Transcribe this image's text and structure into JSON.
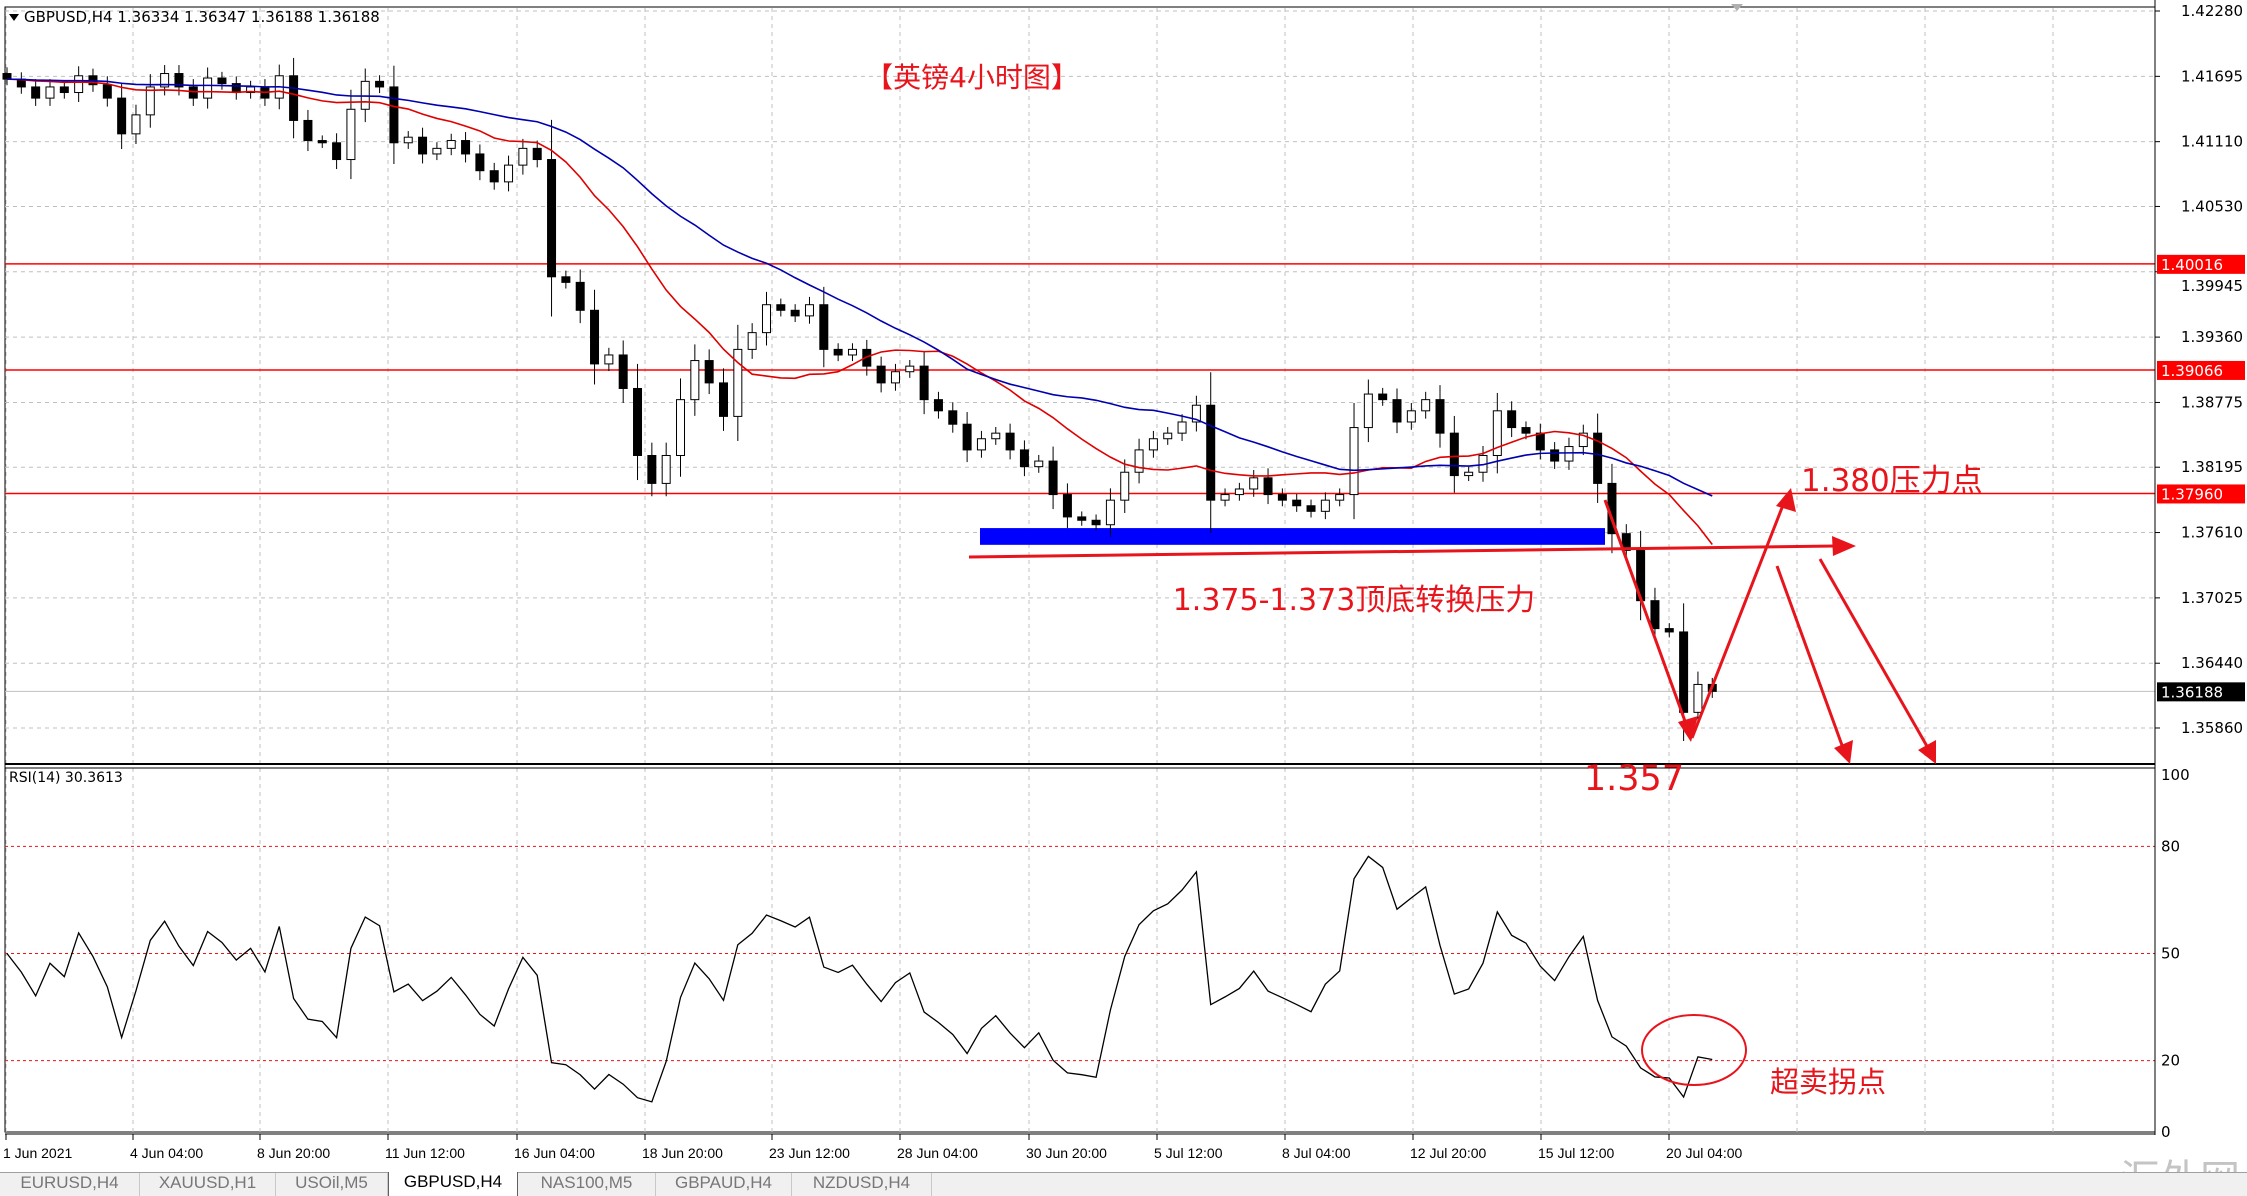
{
  "header": {
    "symbol_info": "GBPUSD,H4  1.36334 1.36347 1.36188 1.36188"
  },
  "chart_title": "【英镑4小时图】",
  "price_axis": {
    "ticks": [
      "1.42280",
      "1.41695",
      "1.41110",
      "1.40530",
      "1.39945",
      "1.39360",
      "1.38775",
      "1.38195",
      "1.37610",
      "1.37025",
      "1.36440",
      "1.35860"
    ],
    "levels": [
      {
        "label": "1.40016",
        "color": "#ff0000"
      },
      {
        "label": "1.39066",
        "color": "#ff0000"
      },
      {
        "label": "1.37960",
        "color": "#ff0000"
      }
    ],
    "current": {
      "label": "1.36188",
      "color": "#000000"
    }
  },
  "time_axis": [
    "1 Jun 2021",
    "4 Jun 04:00",
    "8 Jun 20:00",
    "11 Jun 12:00",
    "16 Jun 04:00",
    "18 Jun 20:00",
    "23 Jun 12:00",
    "28 Jun 04:00",
    "30 Jun 20:00",
    "5 Jul 12:00",
    "8 Jul 04:00",
    "12 Jul 20:00",
    "15 Jul 12:00",
    "20 Jul 04:00"
  ],
  "rsi": {
    "label": "RSI(14) 30.3613",
    "ticks": [
      "100",
      "80",
      "50",
      "20",
      "0"
    ],
    "levels": [
      80,
      50,
      20
    ]
  },
  "annotations": {
    "zone_text": "1.375-1.373顶底转换压力",
    "resistance_text": "1.380压力点",
    "low_text": "1.357",
    "oversold_text": "超卖拐点",
    "color": "#e8141c"
  },
  "zone": {
    "from": 1.375,
    "to": 1.3765,
    "color": "#0000ff"
  },
  "watermark": "汇外网",
  "tabs": [
    {
      "label": "EURUSD,H4",
      "active": false
    },
    {
      "label": "XAUUSD,H1",
      "active": false
    },
    {
      "label": "USOil,M5",
      "active": false
    },
    {
      "label": "GBPUSD,H4",
      "active": true
    },
    {
      "label": "NAS100,M5",
      "active": false
    },
    {
      "label": "GBPAUD,H4",
      "active": false
    },
    {
      "label": "NZDUSD,H4",
      "active": false
    }
  ],
  "chart_data": {
    "type": "candlestick",
    "symbol": "GBPUSD",
    "timeframe": "H4",
    "ylim": [
      1.354,
      1.4228
    ],
    "ma_colors": {
      "fast": "#e00000",
      "slow": "#0000b0"
    },
    "closes": [
      1.4167,
      1.416,
      1.415,
      1.416,
      1.4155,
      1.417,
      1.4162,
      1.415,
      1.4118,
      1.4135,
      1.416,
      1.4172,
      1.416,
      1.415,
      1.4168,
      1.4163,
      1.4155,
      1.416,
      1.415,
      1.417,
      1.413,
      1.4112,
      1.411,
      1.4095,
      1.414,
      1.4165,
      1.416,
      1.411,
      1.4115,
      1.41,
      1.4105,
      1.4112,
      1.41,
      1.4085,
      1.4075,
      1.409,
      1.4105,
      1.4095,
      1.399,
      1.3985,
      1.396,
      1.3912,
      1.392,
      1.389,
      1.383,
      1.3805,
      1.383,
      1.388,
      1.3915,
      1.3895,
      1.3865,
      1.3925,
      1.394,
      1.3965,
      1.396,
      1.3955,
      1.3965,
      1.3925,
      1.392,
      1.3925,
      1.391,
      1.3895,
      1.3905,
      1.391,
      1.388,
      1.387,
      1.3858,
      1.3835,
      1.3845,
      1.385,
      1.3835,
      1.382,
      1.3825,
      1.3795,
      1.3775,
      1.3772,
      1.3768,
      1.379,
      1.3815,
      1.3835,
      1.3845,
      1.385,
      1.386,
      1.3875,
      1.379,
      1.3795,
      1.38,
      1.381,
      1.3795,
      1.379,
      1.3785,
      1.378,
      1.379,
      1.3795,
      1.3855,
      1.3885,
      1.388,
      1.386,
      1.387,
      1.388,
      1.385,
      1.3812,
      1.3815,
      1.383,
      1.387,
      1.3855,
      1.385,
      1.3835,
      1.3825,
      1.3838,
      1.385,
      1.3805,
      1.376,
      1.3745,
      1.37,
      1.3675,
      1.3672,
      1.36,
      1.3625,
      1.36188
    ]
  }
}
